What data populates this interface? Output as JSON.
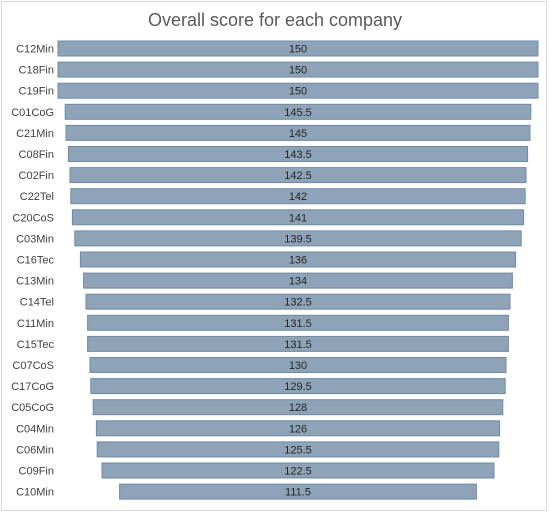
{
  "chart_data": {
    "type": "bar",
    "orientation": "horizontal",
    "style": "funnel",
    "title": "Overall score for each company",
    "xlabel": "",
    "ylabel": "",
    "grid": false,
    "legend": "none",
    "bar_color": "#8ea3b7",
    "bar_edge_color": "#6f8aa3",
    "categories": [
      "C12Min",
      "C18Fin",
      "C19Fin",
      "C01CoG",
      "C21Min",
      "C08Fin",
      "C02Fin",
      "C22Tel",
      "C20CoS",
      "C03Min",
      "C16Tec",
      "C13Min",
      "C14Tel",
      "C11Min",
      "C15Tec",
      "C07CoS",
      "C17CoG",
      "C05CoG",
      "C04Min",
      "C06Min",
      "C09Fin",
      "C10Min"
    ],
    "values": [
      150,
      150,
      150,
      145.5,
      145,
      143.5,
      142.5,
      142,
      141,
      139.5,
      136,
      134,
      132.5,
      131.5,
      131.5,
      130,
      129.5,
      128,
      126,
      125.5,
      122.5,
      111.5
    ]
  }
}
